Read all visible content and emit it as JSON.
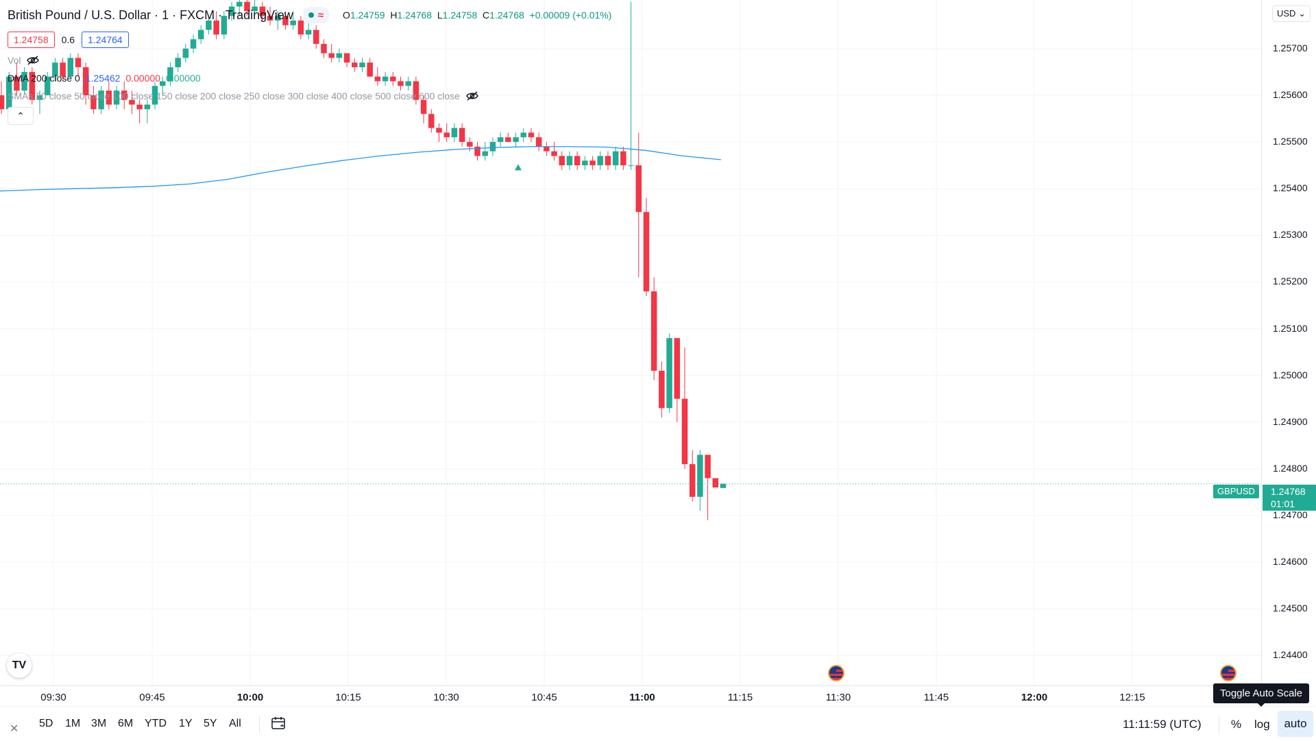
{
  "legend": {
    "title": "British Pound / U.S. Dollar · 1 · FXCM · TradingView",
    "ohlc": {
      "o_label": "O",
      "o": "1.24759",
      "h_label": "H",
      "h": "1.24768",
      "l_label": "L",
      "l": "1.24758",
      "c_label": "C",
      "c": "1.24768",
      "change": "+0.00009 (+0.01%)"
    },
    "bid": "1.24758",
    "spread": "0.6",
    "ask": "1.24764",
    "vol_label": "Vol",
    "dma_label": "DMA 200 close 0",
    "dma_v1": "1.25462",
    "dma_v2": "0.00000",
    "dma_v3": "0.00000",
    "smas_label": "SMAs 20 close 50 close 100 close 150 close 200 close 250 close 300 close 400 close 500 close 600 close"
  },
  "price_scale": {
    "currency": "USD",
    "labels": [
      "1.25700",
      "1.25600",
      "1.25500",
      "1.25400",
      "1.25300",
      "1.25200",
      "1.25100",
      "1.25000",
      "1.24900",
      "1.24800",
      "1.24700",
      "1.24600",
      "1.24500",
      "1.24400"
    ],
    "symbol_tag": "GBPUSD",
    "current_price": "1.24768",
    "countdown": "01:01"
  },
  "time_scale": {
    "labels": [
      {
        "t": "09:30",
        "bold": false
      },
      {
        "t": "09:45",
        "bold": false
      },
      {
        "t": "10:00",
        "bold": true
      },
      {
        "t": "10:15",
        "bold": false
      },
      {
        "t": "10:30",
        "bold": false
      },
      {
        "t": "10:45",
        "bold": false
      },
      {
        "t": "11:00",
        "bold": true
      },
      {
        "t": "11:15",
        "bold": false
      },
      {
        "t": "11:30",
        "bold": false
      },
      {
        "t": "11:45",
        "bold": false
      },
      {
        "t": "12:00",
        "bold": true
      },
      {
        "t": "12:15",
        "bold": false
      }
    ]
  },
  "bottom_bar": {
    "ranges": [
      "5D",
      "1M",
      "3M",
      "6M",
      "YTD",
      "1Y",
      "5Y",
      "All"
    ],
    "clock": "11:11:59 (UTC)",
    "percent": "%",
    "log": "log",
    "auto": "auto",
    "tooltip": "Toggle Auto Scale"
  },
  "colors": {
    "up": "#22ab94",
    "down": "#f23645",
    "ma": "#2196f3",
    "grid": "#f0f3fa"
  },
  "icons": [
    "eye-off-icon",
    "calendar-icon",
    "close-icon",
    "chevron-up-icon",
    "tradingview-logo-icon",
    "us-flag-event-icon"
  ],
  "chart_data": {
    "type": "candlestick",
    "y_range": [
      1.24336,
      1.25804
    ],
    "current_price": 1.24768,
    "candles": [
      [
        1.256,
        1.2563,
        1.2556,
        1.2557
      ],
      [
        1.2557,
        1.2565,
        1.2557,
        1.2564
      ],
      [
        1.2564,
        1.2567,
        1.256,
        1.2561
      ],
      [
        1.2561,
        1.2566,
        1.256,
        1.2565
      ],
      [
        1.2565,
        1.2566,
        1.2558,
        1.2559
      ],
      [
        1.2559,
        1.2561,
        1.2556,
        1.256
      ],
      [
        1.256,
        1.2565,
        1.256,
        1.2564
      ],
      [
        1.2564,
        1.2568,
        1.2563,
        1.2567
      ],
      [
        1.2567,
        1.2568,
        1.2563,
        1.2564
      ],
      [
        1.2564,
        1.2569,
        1.2564,
        1.2568
      ],
      [
        1.2568,
        1.2569,
        1.2564,
        1.2566
      ],
      [
        1.2566,
        1.2567,
        1.2558,
        1.256
      ],
      [
        1.256,
        1.2562,
        1.2556,
        1.2557
      ],
      [
        1.2557,
        1.2562,
        1.2556,
        1.2561
      ],
      [
        1.2561,
        1.2563,
        1.2557,
        1.2558
      ],
      [
        1.2558,
        1.2562,
        1.2557,
        1.2561
      ],
      [
        1.2561,
        1.2563,
        1.2557,
        1.2559
      ],
      [
        1.2559,
        1.2561,
        1.2556,
        1.2558
      ],
      [
        1.2558,
        1.2559,
        1.2554,
        1.2557
      ],
      [
        1.2557,
        1.2559,
        1.2554,
        1.2558
      ],
      [
        1.2558,
        1.2563,
        1.2557,
        1.2562
      ],
      [
        1.2562,
        1.2564,
        1.256,
        1.2563
      ],
      [
        1.2563,
        1.2567,
        1.2562,
        1.2566
      ],
      [
        1.2566,
        1.2569,
        1.2565,
        1.2568
      ],
      [
        1.2568,
        1.2571,
        1.2567,
        1.257
      ],
      [
        1.257,
        1.2573,
        1.2569,
        1.2572
      ],
      [
        1.2572,
        1.2575,
        1.2571,
        1.2574
      ],
      [
        1.2574,
        1.2577,
        1.2573,
        1.2576
      ],
      [
        1.2576,
        1.2578,
        1.2572,
        1.2573
      ],
      [
        1.2573,
        1.2578,
        1.2572,
        1.2577
      ],
      [
        1.2577,
        1.258,
        1.2576,
        1.2579
      ],
      [
        1.2579,
        1.2581,
        1.2577,
        1.258
      ],
      [
        1.258,
        1.2581,
        1.2577,
        1.2578
      ],
      [
        1.2578,
        1.2582,
        1.2577,
        1.2579
      ],
      [
        1.2579,
        1.258,
        1.2576,
        1.2577
      ],
      [
        1.2577,
        1.2579,
        1.2575,
        1.2576
      ],
      [
        1.2576,
        1.2578,
        1.2574,
        1.2577
      ],
      [
        1.2577,
        1.2578,
        1.2574,
        1.2575
      ],
      [
        1.2575,
        1.2578,
        1.2574,
        1.2576
      ],
      [
        1.2576,
        1.2577,
        1.2572,
        1.2573
      ],
      [
        1.2573,
        1.2576,
        1.2572,
        1.2574
      ],
      [
        1.2574,
        1.2575,
        1.257,
        1.2571
      ],
      [
        1.2571,
        1.2572,
        1.2568,
        1.2569
      ],
      [
        1.2569,
        1.2571,
        1.2567,
        1.2568
      ],
      [
        1.2568,
        1.257,
        1.2567,
        1.2569
      ],
      [
        1.2569,
        1.2569,
        1.2566,
        1.2567
      ],
      [
        1.2567,
        1.2568,
        1.2565,
        1.2566
      ],
      [
        1.2566,
        1.2568,
        1.2565,
        1.2567
      ],
      [
        1.2567,
        1.2568,
        1.2564,
        1.2564
      ],
      [
        1.2564,
        1.2566,
        1.2562,
        1.2563
      ],
      [
        1.2563,
        1.2565,
        1.2562,
        1.2564
      ],
      [
        1.2564,
        1.2565,
        1.2562,
        1.2563
      ],
      [
        1.2563,
        1.2564,
        1.2561,
        1.2562
      ],
      [
        1.2562,
        1.2564,
        1.2561,
        1.2563
      ],
      [
        1.2563,
        1.2564,
        1.2558,
        1.2559
      ],
      [
        1.2559,
        1.256,
        1.2554,
        1.2556
      ],
      [
        1.2556,
        1.2557,
        1.2552,
        1.2553
      ],
      [
        1.2553,
        1.2554,
        1.255,
        1.2552
      ],
      [
        1.2552,
        1.2554,
        1.255,
        1.2551
      ],
      [
        1.2551,
        1.2554,
        1.255,
        1.2553
      ],
      [
        1.2553,
        1.2554,
        1.2549,
        1.255
      ],
      [
        1.255,
        1.2551,
        1.2548,
        1.2549
      ],
      [
        1.2549,
        1.255,
        1.2546,
        1.2547
      ],
      [
        1.2547,
        1.255,
        1.2546,
        1.2548
      ],
      [
        1.2548,
        1.2551,
        1.2547,
        1.255
      ],
      [
        1.255,
        1.2552,
        1.2549,
        1.2551
      ],
      [
        1.2551,
        1.2552,
        1.255,
        1.255
      ],
      [
        1.255,
        1.2552,
        1.2549,
        1.2551
      ],
      [
        1.2551,
        1.2553,
        1.255,
        1.2552
      ],
      [
        1.2552,
        1.2553,
        1.255,
        1.2551
      ],
      [
        1.2551,
        1.2552,
        1.2548,
        1.2549
      ],
      [
        1.2549,
        1.255,
        1.2547,
        1.2548
      ],
      [
        1.2548,
        1.255,
        1.2546,
        1.2547
      ],
      [
        1.2547,
        1.2548,
        1.2544,
        1.2545
      ],
      [
        1.2545,
        1.2548,
        1.2544,
        1.2547
      ],
      [
        1.2547,
        1.2548,
        1.2544,
        1.2545
      ],
      [
        1.2545,
        1.2547,
        1.2544,
        1.2546
      ],
      [
        1.2546,
        1.2547,
        1.2544,
        1.2545
      ],
      [
        1.2545,
        1.2548,
        1.2544,
        1.2547
      ],
      [
        1.2547,
        1.2548,
        1.2544,
        1.2545
      ],
      [
        1.2545,
        1.2549,
        1.2544,
        1.2548
      ],
      [
        1.2548,
        1.2549,
        1.2544,
        1.2545
      ],
      [
        1.2545,
        1.258,
        1.2544,
        1.2545
      ],
      [
        1.2545,
        1.2552,
        1.2521,
        1.2535
      ],
      [
        1.2535,
        1.2538,
        1.2517,
        1.2518
      ],
      [
        1.2518,
        1.2521,
        1.2499,
        1.2501
      ],
      [
        1.2501,
        1.2503,
        1.2491,
        1.2493
      ],
      [
        1.2493,
        1.2509,
        1.2492,
        1.2508
      ],
      [
        1.2508,
        1.2508,
        1.249,
        1.2495
      ],
      [
        1.2495,
        1.2506,
        1.248,
        1.2481
      ],
      [
        1.2481,
        1.2484,
        1.2473,
        1.2474
      ],
      [
        1.2474,
        1.2484,
        1.2471,
        1.2483
      ],
      [
        1.2483,
        1.2482,
        1.2469,
        1.2478
      ],
      [
        1.2478,
        1.2478,
        1.2476,
        1.2476
      ],
      [
        1.24759,
        1.24768,
        1.24758,
        1.24768
      ]
    ],
    "ma": [
      1.25395,
      1.25398,
      1.254,
      1.25402,
      1.25405,
      1.2541,
      1.2542,
      1.25435,
      1.25448,
      1.2546,
      1.2547,
      1.25478,
      1.25484,
      1.25488,
      1.2549,
      1.2549,
      1.25489,
      1.25482,
      1.2547,
      1.25462
    ],
    "buy_marker_price": 1.25445
  }
}
